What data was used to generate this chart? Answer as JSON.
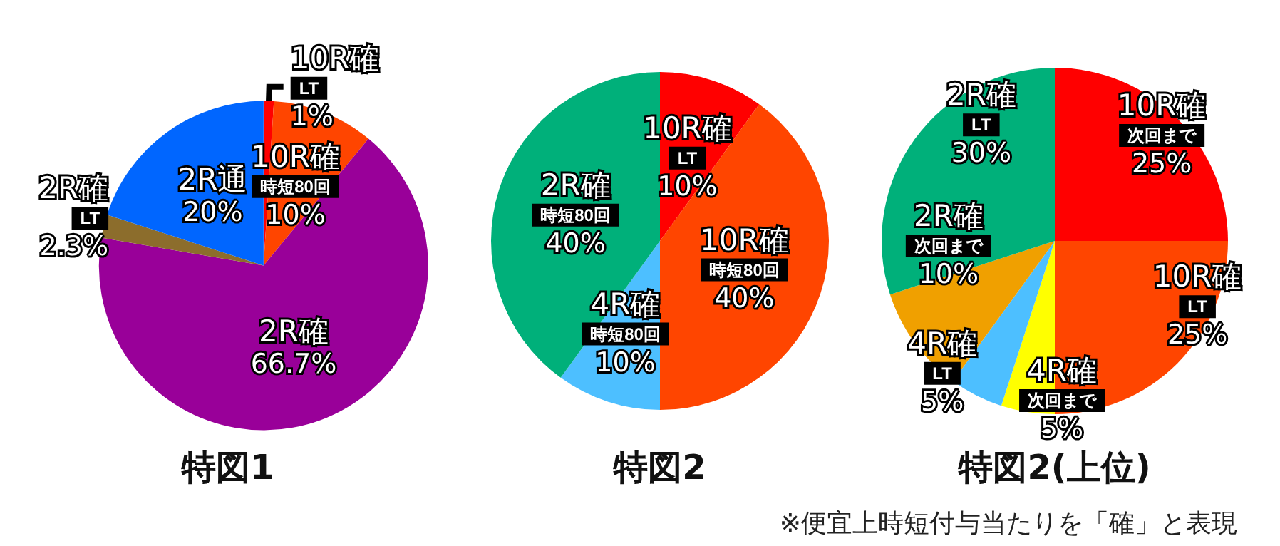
{
  "chart_data": [
    {
      "type": "pie",
      "title": "特図1",
      "categories": [
        "10R確LT",
        "10R確時短80回",
        "2R確",
        "2R確LT",
        "2R通"
      ],
      "values": [
        1,
        10,
        66.7,
        2.3,
        20
      ],
      "value_labels": [
        "1%",
        "10%",
        "66.7%",
        "2.3%",
        "20%"
      ],
      "colors": [
        "#ff0000",
        "#ff4500",
        "#990099",
        "#8c6d2c",
        "#0066ff"
      ]
    },
    {
      "type": "pie",
      "title": "特図2",
      "categories": [
        "10R確LT",
        "10R確時短80回",
        "4R確時短80回",
        "2R確時短80回"
      ],
      "values": [
        10,
        40,
        10,
        40
      ],
      "value_labels": [
        "10%",
        "40%",
        "10%",
        "40%"
      ],
      "colors": [
        "#ff0000",
        "#ff4500",
        "#4dbfff",
        "#00b07a"
      ]
    },
    {
      "type": "pie",
      "title": "特図2(上位)",
      "categories": [
        "10R確次回まで",
        "10R確LT",
        "4R確次回まで",
        "4R確LT",
        "2R確次回まで",
        "2R確LT"
      ],
      "values": [
        25,
        25,
        5,
        5,
        10,
        30
      ],
      "value_labels": [
        "25%",
        "25%",
        "5%",
        "5%",
        "10%",
        "30%"
      ],
      "colors": [
        "#ff0000",
        "#ff4500",
        "#ffff00",
        "#4dbfff",
        "#f0a000",
        "#00b07a"
      ],
      "annotations": [
        "※便宜上時短付与当たりを「確」と表現"
      ]
    }
  ]
}
